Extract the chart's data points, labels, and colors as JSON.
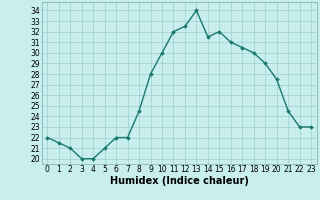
{
  "x": [
    0,
    1,
    2,
    3,
    4,
    5,
    6,
    7,
    8,
    9,
    10,
    11,
    12,
    13,
    14,
    15,
    16,
    17,
    18,
    19,
    20,
    21,
    22,
    23
  ],
  "y": [
    22,
    21.5,
    21,
    20,
    20,
    21,
    22,
    22,
    24.5,
    28,
    30,
    32,
    32.5,
    34,
    31.5,
    32,
    31,
    30.5,
    30,
    29,
    27.5,
    24.5,
    23,
    23
  ],
  "line_color": "#1a7a6e",
  "marker": "D",
  "marker_size": 1.8,
  "bg_color": "#c8eeee",
  "grid_color": "#9ecece",
  "xlabel": "Humidex (Indice chaleur)",
  "xlabel_fontsize": 7,
  "ylim": [
    19.5,
    34.8
  ],
  "xlim": [
    -0.5,
    23.5
  ],
  "yticks": [
    20,
    21,
    22,
    23,
    24,
    25,
    26,
    27,
    28,
    29,
    30,
    31,
    32,
    33,
    34
  ],
  "xticks": [
    0,
    1,
    2,
    3,
    4,
    5,
    6,
    7,
    8,
    9,
    10,
    11,
    12,
    13,
    14,
    15,
    16,
    17,
    18,
    19,
    20,
    21,
    22,
    23
  ],
  "tick_fontsize": 5.5,
  "line_width": 1.0
}
